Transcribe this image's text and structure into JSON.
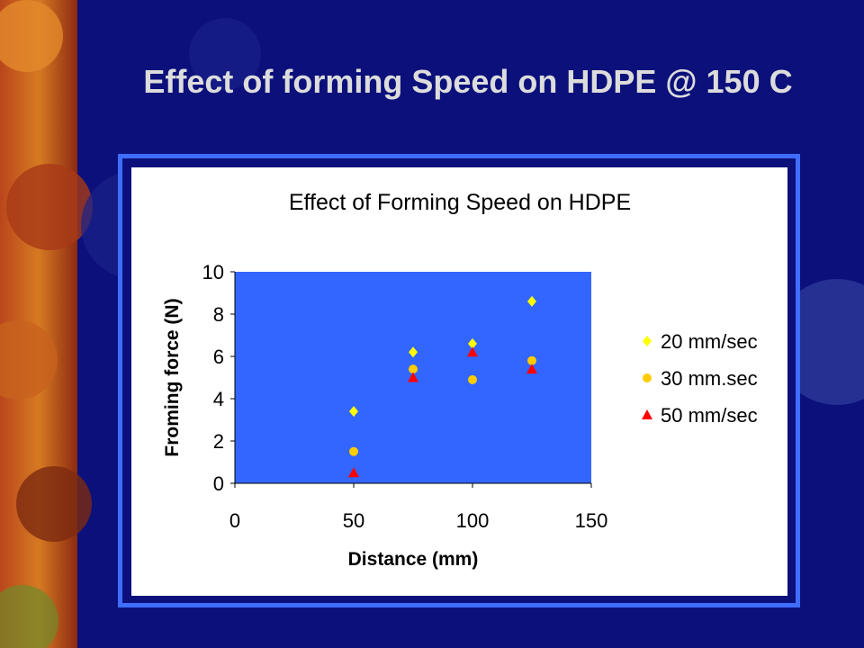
{
  "slide": {
    "title": "Effect of forming Speed on HDPE @ 150 C",
    "background_color": "#0c107a",
    "frame_color": "#3f6dff"
  },
  "chart_data": {
    "type": "scatter",
    "title": "Effect of Forming Speed on HDPE",
    "xlabel": "Distance (mm)",
    "ylabel": "Froming force (N)",
    "xlim": [
      0,
      150
    ],
    "ylim": [
      0,
      10
    ],
    "xticks": [
      0,
      50,
      100,
      150
    ],
    "yticks": [
      0,
      2,
      4,
      6,
      8,
      10
    ],
    "grid": false,
    "plot_background": "#3366ff",
    "legend_position": "right",
    "series": [
      {
        "name": "20 mm/sec",
        "marker": "diamond",
        "color": "#ffff00",
        "points": [
          [
            50,
            3.4
          ],
          [
            75,
            6.2
          ],
          [
            100,
            6.6
          ],
          [
            125,
            8.6
          ]
        ]
      },
      {
        "name": "30 mm.sec",
        "marker": "circle",
        "color": "#ffcc00",
        "points": [
          [
            50,
            1.5
          ],
          [
            75,
            5.4
          ],
          [
            100,
            4.9
          ],
          [
            125,
            5.8
          ]
        ]
      },
      {
        "name": "50 mm/sec",
        "marker": "triangle",
        "color": "#ff0000",
        "points": [
          [
            50,
            0.5
          ],
          [
            75,
            5.0
          ],
          [
            100,
            6.2
          ],
          [
            125,
            5.4
          ]
        ]
      }
    ]
  }
}
